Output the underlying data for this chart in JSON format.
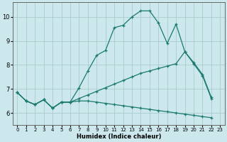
{
  "xlabel": "Humidex (Indice chaleur)",
  "bg_color": "#cce8ec",
  "grid_color": "#aacccc",
  "line_color": "#1a7a6e",
  "xlim": [
    -0.5,
    23.5
  ],
  "ylim": [
    5.5,
    10.6
  ],
  "xticks": [
    0,
    1,
    2,
    3,
    4,
    5,
    6,
    7,
    8,
    9,
    10,
    11,
    12,
    13,
    14,
    15,
    16,
    17,
    18,
    19,
    20,
    21,
    22,
    23
  ],
  "yticks": [
    6,
    7,
    8,
    9,
    10
  ],
  "line1_x": [
    0,
    1,
    2,
    3,
    4,
    5,
    6,
    7,
    8,
    9,
    10,
    11,
    12,
    13,
    14,
    15,
    16,
    17,
    18,
    19,
    20,
    21,
    22
  ],
  "line1_y": [
    6.85,
    6.5,
    6.35,
    6.55,
    6.2,
    6.45,
    6.45,
    7.05,
    7.75,
    8.4,
    8.6,
    9.55,
    9.65,
    10.0,
    10.25,
    10.25,
    9.75,
    8.9,
    9.7,
    8.55,
    8.05,
    7.55,
    6.6
  ],
  "line2_x": [
    0,
    1,
    2,
    3,
    4,
    5,
    6,
    7,
    8,
    9,
    10,
    11,
    12,
    13,
    14,
    15,
    16,
    17,
    18,
    19,
    20,
    21,
    22
  ],
  "line2_y": [
    6.85,
    6.5,
    6.35,
    6.55,
    6.2,
    6.45,
    6.45,
    6.6,
    6.75,
    6.9,
    7.05,
    7.2,
    7.35,
    7.5,
    7.65,
    7.75,
    7.85,
    7.95,
    8.05,
    8.55,
    8.1,
    7.6,
    6.65
  ],
  "line3_x": [
    0,
    1,
    2,
    3,
    4,
    5,
    6,
    7,
    8,
    9,
    10,
    11,
    12,
    13,
    14,
    15,
    16,
    17,
    18,
    19,
    20,
    21,
    22
  ],
  "line3_y": [
    6.85,
    6.5,
    6.35,
    6.55,
    6.2,
    6.45,
    6.45,
    6.5,
    6.5,
    6.45,
    6.4,
    6.35,
    6.3,
    6.25,
    6.2,
    6.15,
    6.1,
    6.05,
    6.0,
    5.95,
    5.9,
    5.85,
    5.8
  ]
}
